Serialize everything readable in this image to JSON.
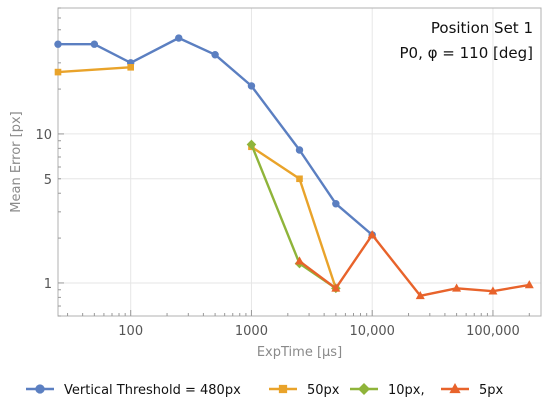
{
  "chart_data": {
    "type": "line",
    "x_scale": "log",
    "y_scale": "log",
    "xlabel": "ExpTime [μs]",
    "ylabel": "Mean Error [px]",
    "xticks": [
      {
        "value": 100,
        "label": "100"
      },
      {
        "value": 1000,
        "label": "1000"
      },
      {
        "value": 10000,
        "label": "10,000"
      },
      {
        "value": 100000,
        "label": "100,000"
      }
    ],
    "yticks": [
      {
        "value": 1,
        "label": "1"
      },
      {
        "value": 5,
        "label": "5"
      },
      {
        "value": 10,
        "label": "10"
      }
    ],
    "xlim": [
      25,
      250000
    ],
    "ylim": [
      0.6,
      70
    ],
    "grid": true,
    "legend_position": "bottom",
    "annotation_lines": [
      "Position Set 1",
      "P0, φ = 110 [deg]"
    ],
    "series": [
      {
        "name": "Vertical Threshold = 480px",
        "color": "#5b7fc1",
        "marker": "circle",
        "points": [
          [
            25,
            40
          ],
          [
            50,
            40
          ],
          [
            100,
            30
          ],
          [
            250,
            44
          ],
          [
            500,
            34
          ],
          [
            1000,
            21
          ],
          [
            2500,
            7.8
          ],
          [
            5000,
            3.4
          ],
          [
            10000,
            2.1
          ]
        ]
      },
      {
        "name": "50px",
        "color": "#e9a32a",
        "marker": "square",
        "points": [
          [
            25,
            26
          ],
          [
            100,
            28
          ]
        ]
      },
      {
        "name": "50px",
        "color": "#e9a32a",
        "marker": "square",
        "points": [
          [
            1000,
            8.2
          ],
          [
            2500,
            5.0
          ],
          [
            5000,
            0.92
          ]
        ]
      },
      {
        "name": "10px,",
        "color": "#8fb43a",
        "marker": "diamond",
        "points": [
          [
            1000,
            8.5
          ],
          [
            2500,
            1.35
          ],
          [
            5000,
            0.92
          ]
        ]
      },
      {
        "name": "5px",
        "color": "#e8632b",
        "marker": "triangle",
        "points": [
          [
            2500,
            1.4
          ],
          [
            5000,
            0.92
          ],
          [
            10000,
            2.1
          ],
          [
            25000,
            0.82
          ],
          [
            50000,
            0.92
          ],
          [
            100000,
            0.88
          ],
          [
            200000,
            0.97
          ]
        ]
      }
    ],
    "legend": [
      {
        "label": "Vertical Threshold = 480px",
        "color": "#5b7fc1",
        "marker": "circle"
      },
      {
        "label": "50px",
        "color": "#e9a32a",
        "marker": "square"
      },
      {
        "label": "10px,",
        "color": "#8fb43a",
        "marker": "diamond"
      },
      {
        "label": "5px",
        "color": "#e8632b",
        "marker": "triangle"
      }
    ]
  }
}
